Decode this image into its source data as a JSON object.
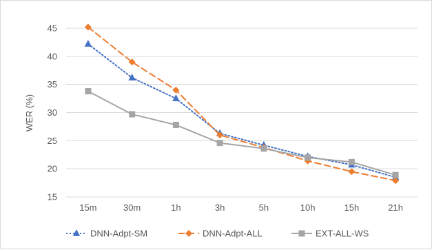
{
  "chart_data": {
    "type": "line",
    "title": "",
    "xlabel": "",
    "ylabel": "WER (%)",
    "ylim": [
      15,
      45
    ],
    "yticks": [
      15,
      20,
      25,
      30,
      35,
      40,
      45
    ],
    "grid": "horizontal",
    "legend_position": "bottom",
    "categories": [
      "15m",
      "30m",
      "1h",
      "3h",
      "5h",
      "10h",
      "15h",
      "21h"
    ],
    "series": [
      {
        "name": "DNN-Adpt-SM",
        "values": [
          42.2,
          36.2,
          32.5,
          26.3,
          24.2,
          22.2,
          20.7,
          18.5
        ],
        "color": "#4472c4",
        "marker": "triangle",
        "line_style": "dotted"
      },
      {
        "name": "DNN-Adpt-ALL",
        "values": [
          45.2,
          39.0,
          34.0,
          26.0,
          23.8,
          21.4,
          19.5,
          17.9
        ],
        "color": "#ed7d31",
        "marker": "diamond",
        "line_style": "dashed"
      },
      {
        "name": "EXT-ALL-WS",
        "values": [
          33.8,
          29.7,
          27.8,
          24.6,
          23.6,
          22.0,
          21.2,
          18.9
        ],
        "color": "#a5a5a5",
        "marker": "square",
        "line_style": "solid"
      }
    ]
  }
}
